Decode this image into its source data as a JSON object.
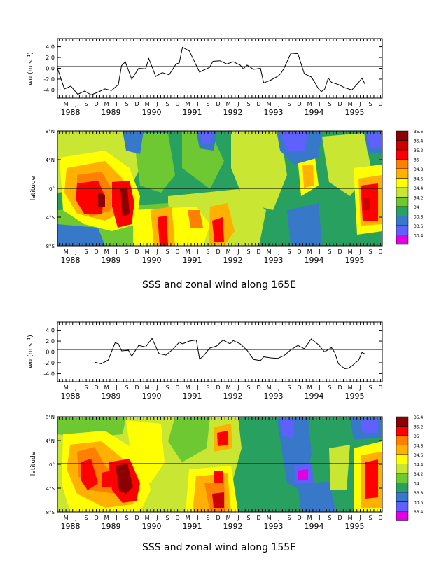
{
  "chart_data": [
    {
      "type": "line",
      "panel": "wind-165E",
      "ylabel": "wu (m s⁻¹)",
      "ylim": [
        -5.5,
        5.5
      ],
      "yticks": [
        4.0,
        2.0,
        0.0,
        -2.0,
        -4.0
      ],
      "ytick_labels": [
        "4.0",
        "2.0",
        "0.0",
        "-2.0",
        "-4.0"
      ],
      "month_labels": [
        "M",
        "J",
        "S",
        "D"
      ],
      "year_labels": [
        "1988",
        "1989",
        "1990",
        "1991",
        "1992",
        "1993",
        "1994",
        "1995"
      ],
      "series": [
        {
          "x": [
            1988.0,
            1988.17,
            1988.33,
            1988.5,
            1988.67,
            1988.83,
            1989.0,
            1989.17,
            1989.33,
            1989.5,
            1989.58,
            1989.67,
            1989.83,
            1990.0,
            1990.17,
            1990.25,
            1990.42,
            1990.58,
            1990.75,
            1990.92,
            1991.0,
            1991.08,
            1991.25,
            1991.42,
            1991.5,
            1991.58,
            1991.67,
            1991.75,
            1991.83,
            1992.0,
            1992.17,
            1992.33,
            1992.5,
            1992.58,
            1992.67,
            1992.83,
            1993.0,
            1993.08,
            1993.25,
            1993.42,
            1993.5,
            1993.58,
            1993.75,
            1993.92,
            1994.08,
            1994.25,
            1994.33,
            1994.42,
            1994.5,
            1994.58,
            1994.67,
            1994.75,
            1994.92,
            1995.08,
            1995.25,
            1995.42,
            1995.5,
            1995.58
          ],
          "y": [
            0.0,
            -3.8,
            -3.3,
            -4.8,
            -4.2,
            -4.9,
            -4.4,
            -3.8,
            -4.1,
            -3.0,
            0.5,
            1.2,
            -2.0,
            0.0,
            -0.1,
            1.8,
            -1.5,
            -0.8,
            -1.2,
            0.8,
            1.0,
            3.9,
            3.2,
            0.5,
            -0.7,
            -0.4,
            -0.1,
            0.2,
            1.3,
            1.4,
            0.8,
            1.2,
            0.6,
            -0.1,
            0.6,
            -0.2,
            0.0,
            -2.7,
            -2.2,
            -1.5,
            -1.0,
            0.0,
            2.8,
            2.7,
            -1.0,
            -1.6,
            -2.5,
            -3.7,
            -4.3,
            -3.9,
            -1.8,
            -2.6,
            -3.0,
            -3.6,
            -4.0,
            -2.6,
            -1.8,
            -3.0
          ]
        }
      ]
    },
    {
      "type": "heatmap",
      "panel": "sss-165E",
      "ylabel": "latitude",
      "ytick_labels": [
        "8°N",
        "4°N",
        "0°",
        "4°S",
        "8°S"
      ],
      "month_labels": [
        "M",
        "J",
        "S",
        "D"
      ],
      "year_labels": [
        "1988",
        "1989",
        "1990",
        "1991",
        "1992",
        "1993",
        "1994",
        "1995"
      ],
      "colorbar": {
        "labels": [
          "35.6",
          "35.4",
          "35.2",
          "35",
          "34.8",
          "34.6",
          "34.4",
          "34.2",
          "34",
          "33.8",
          "33.6",
          "33.4"
        ],
        "colors": [
          "#8b0000",
          "#cc0000",
          "#ff0000",
          "#ff8000",
          "#ffb000",
          "#ffff00",
          "#c8e632",
          "#6ec832",
          "#28a060",
          "#3878c8",
          "#6060ff",
          "#e000e0"
        ]
      }
    },
    {
      "type": "line",
      "panel": "wind-155E",
      "ylabel": "wu (m s⁻¹)",
      "ylim": [
        -5.5,
        5.5
      ],
      "yticks": [
        4.0,
        2.0,
        0.0,
        -2.0,
        -4.0
      ],
      "ytick_labels": [
        "4.0",
        "2.0",
        "0.0",
        "-2.0",
        "-4.0"
      ],
      "month_labels": [
        "M",
        "J",
        "S",
        "D"
      ],
      "year_labels": [
        "1988",
        "1989",
        "1990",
        "1991",
        "1992",
        "1993",
        "1994",
        "1995"
      ],
      "series": [
        {
          "x": [
            1988.92,
            1989.08,
            1989.25,
            1989.42,
            1989.5,
            1989.58,
            1989.75,
            1989.83,
            1990.0,
            1990.17,
            1990.33,
            1990.5,
            1990.67,
            1990.83,
            1991.0,
            1991.08,
            1991.25,
            1991.42,
            1991.5,
            1991.58,
            1991.75,
            1991.92,
            1992.08,
            1992.25,
            1992.33,
            1992.5,
            1992.67,
            1992.83,
            1993.0,
            1993.08,
            1993.25,
            1993.42,
            1993.58,
            1993.75,
            1993.92,
            1994.08,
            1994.25,
            1994.42,
            1994.58,
            1994.75,
            1994.83,
            1994.92,
            1995.08,
            1995.17,
            1995.25,
            1995.42,
            1995.5,
            1995.58
          ],
          "y": [
            -1.9,
            -2.2,
            -1.5,
            1.7,
            1.5,
            0.2,
            0.3,
            -0.8,
            1.2,
            0.9,
            2.5,
            -0.3,
            -0.6,
            0.4,
            1.8,
            1.5,
            2.0,
            2.2,
            -1.3,
            -0.9,
            0.7,
            1.1,
            2.2,
            1.5,
            2.1,
            1.5,
            0.3,
            -1.4,
            -1.6,
            -0.9,
            -1.1,
            -1.2,
            -0.7,
            0.4,
            1.2,
            0.6,
            2.4,
            1.4,
            0.0,
            0.8,
            -0.1,
            -2.2,
            -3.1,
            -3.0,
            -2.6,
            -1.5,
            -0.1,
            -0.4
          ]
        }
      ]
    },
    {
      "type": "heatmap",
      "panel": "sss-155E",
      "ylabel": "latitude",
      "ytick_labels": [
        "8°N",
        "4°N",
        "0°",
        "4°S",
        "8°S"
      ],
      "month_labels": [
        "M",
        "J",
        "S",
        "D"
      ],
      "year_labels": [
        "1988",
        "1989",
        "1990",
        "1991",
        "1992",
        "1993",
        "1994",
        "1995"
      ],
      "colorbar": {
        "labels": [
          "35.4",
          "35.2",
          "35",
          "34.8",
          "34.6",
          "34.4",
          "34.2",
          "34",
          "33.8",
          "33.6",
          "33.4"
        ],
        "colors": [
          "#8b0000",
          "#ff0000",
          "#ff8000",
          "#ffb000",
          "#ffff00",
          "#c8e632",
          "#6ec832",
          "#28a060",
          "#3878c8",
          "#6060ff",
          "#e000e0"
        ]
      }
    }
  ],
  "captions": {
    "top": "SSS and zonal wind along 165E",
    "bottom": "SSS and zonal wind along 155E"
  }
}
